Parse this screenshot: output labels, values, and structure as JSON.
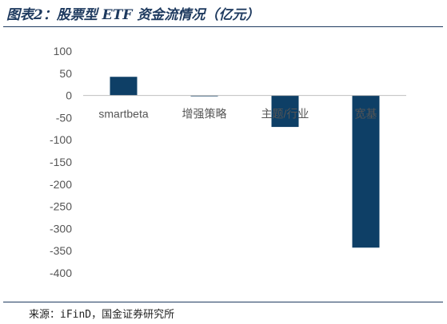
{
  "header": {
    "title": "图表2：股票型 ETF 资金流情况（亿元）"
  },
  "footer": {
    "source": "来源：iFinD，国金证券研究所"
  },
  "colors": {
    "bar": "#0e3f66",
    "axis": "#bfbfbf",
    "title": "#1e3a5f"
  },
  "chart_data": {
    "type": "bar",
    "title": "图表2：股票型 ETF 资金流情况（亿元）",
    "xlabel": "",
    "ylabel": "",
    "categories": [
      "smartbeta",
      "增强策略",
      "主题/行业",
      "宽基"
    ],
    "values": [
      42,
      -2,
      -71,
      -343
    ],
    "ylim": [
      -400,
      100
    ],
    "yticks": [
      100,
      50,
      0,
      -50,
      -100,
      -150,
      -200,
      -250,
      -300,
      -350,
      -400
    ],
    "grid": false,
    "legend": "none"
  }
}
